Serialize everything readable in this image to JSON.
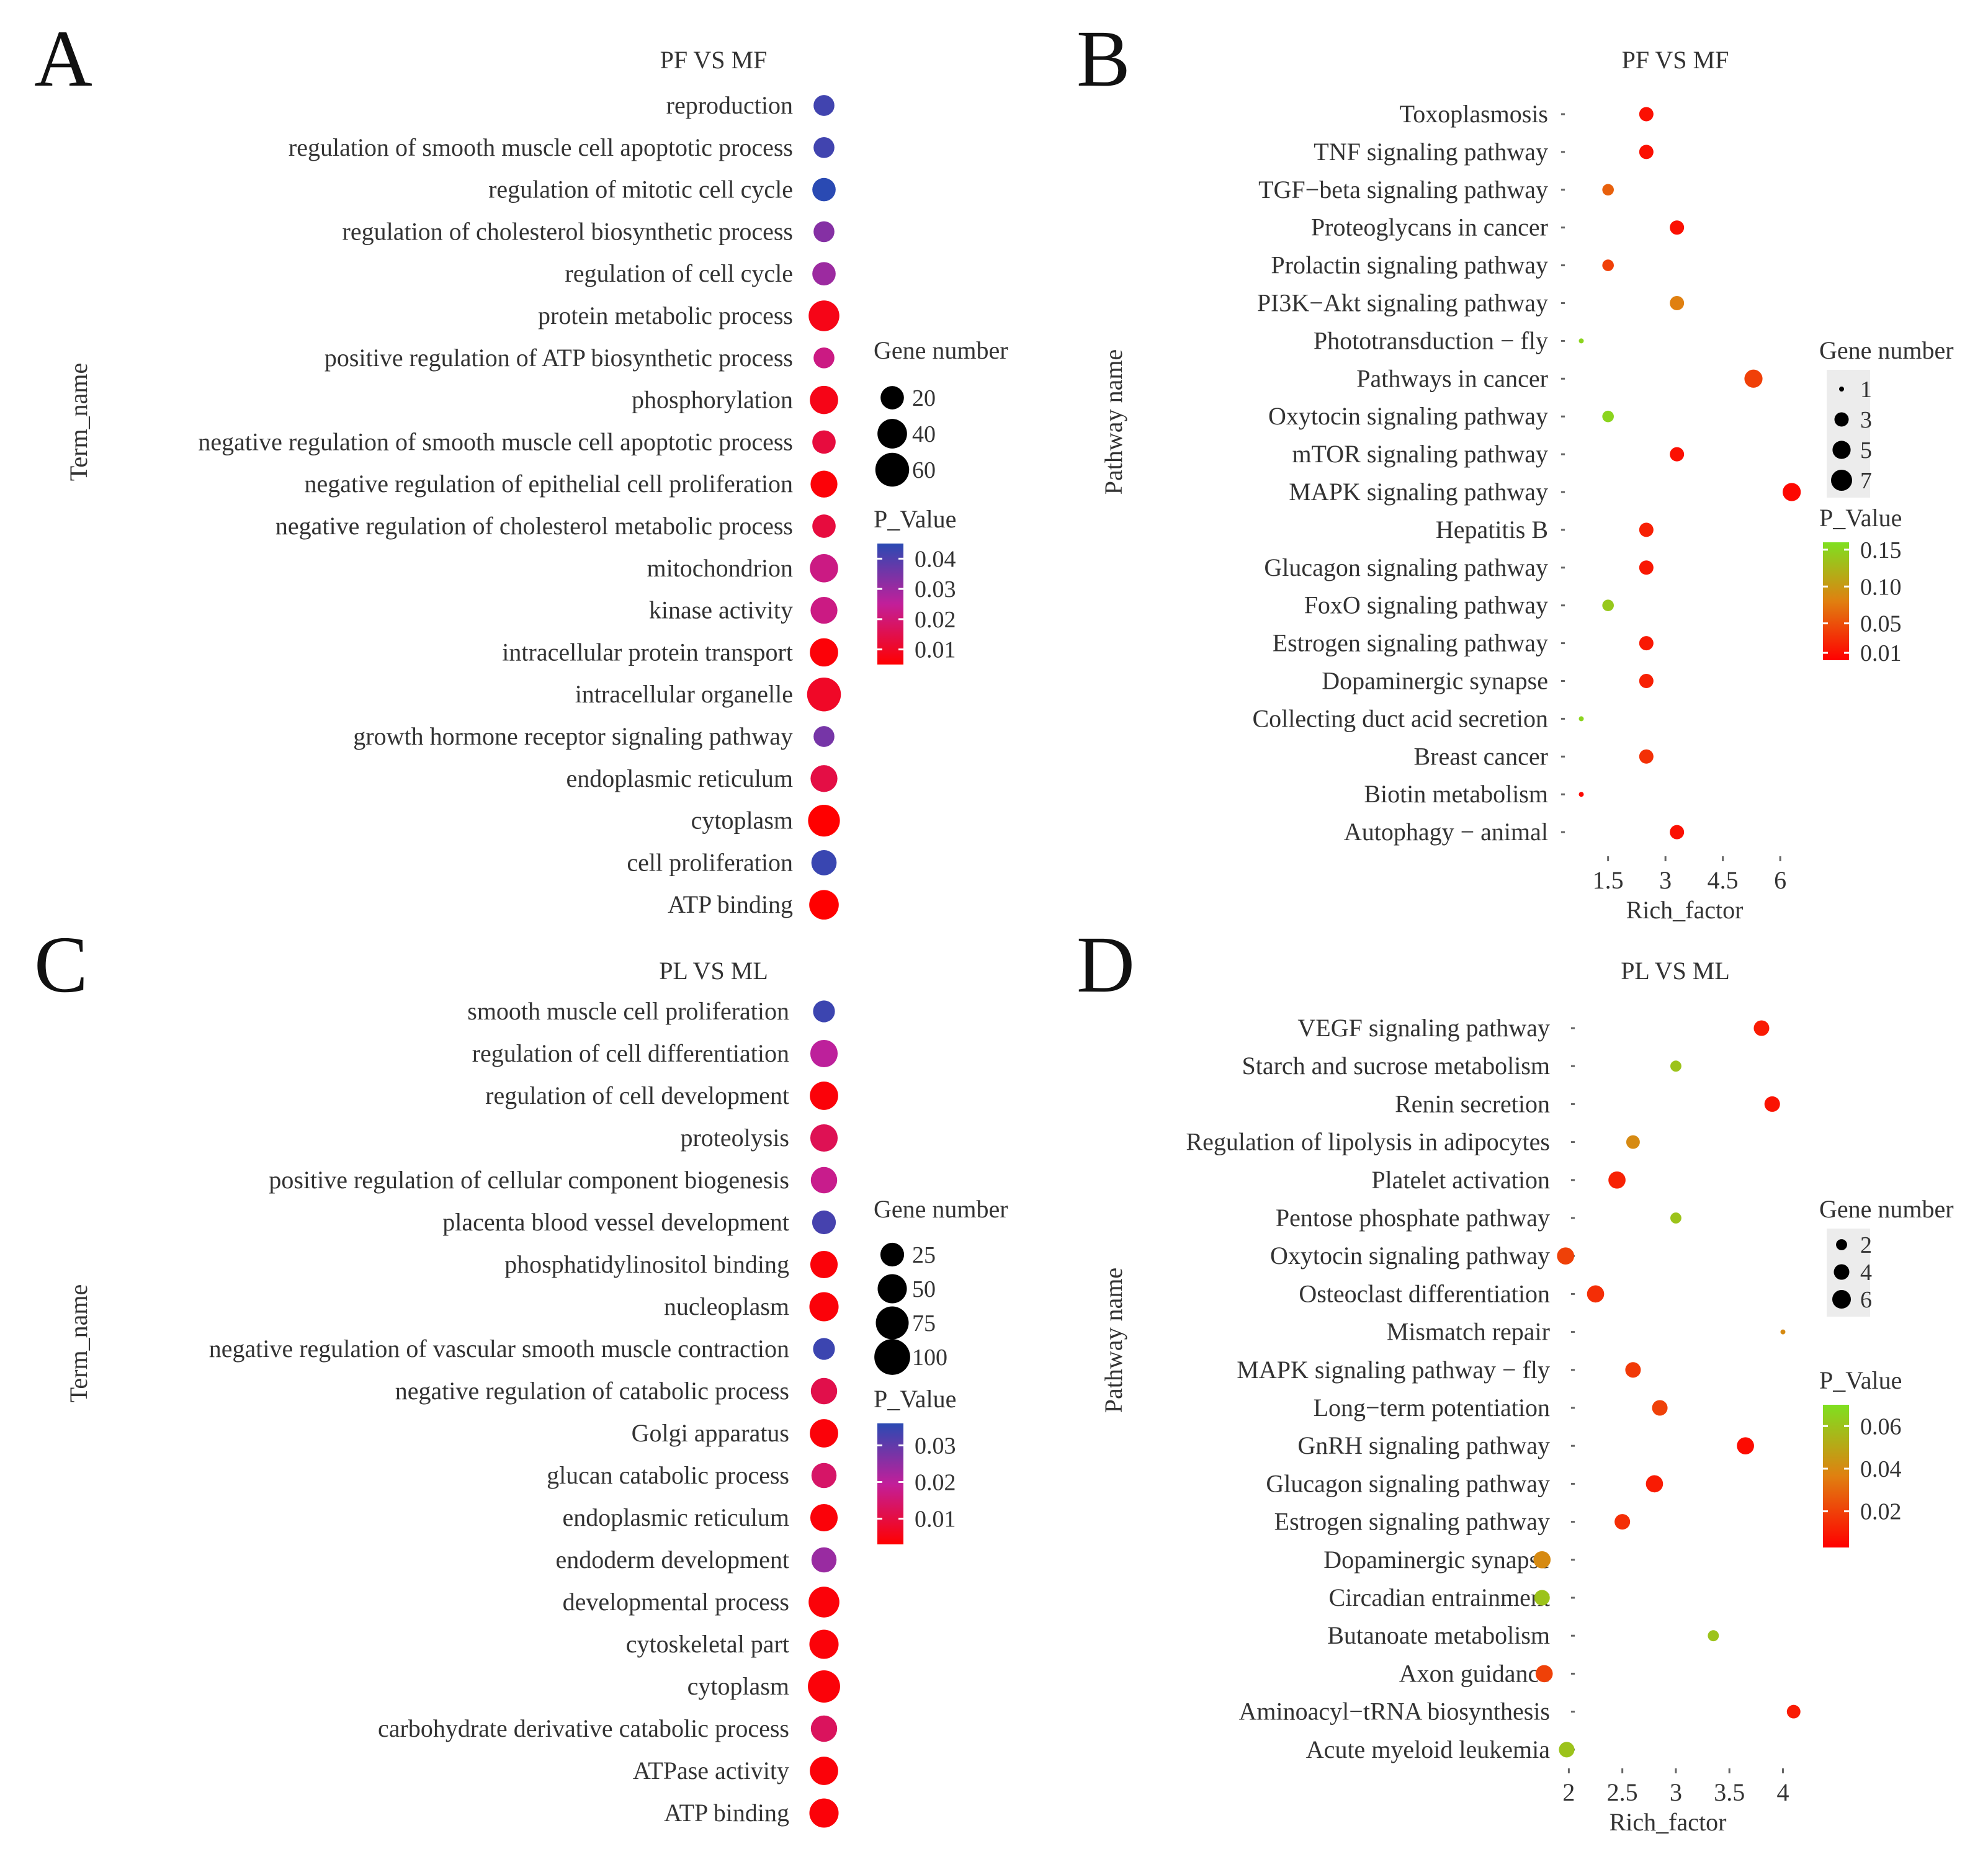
{
  "chart_data": [
    {
      "id": "A",
      "type": "scatter",
      "panel_label": "A",
      "title": "PF  VS  MF",
      "ylabel": "Term_name",
      "xlabel": "",
      "terms": [
        "reproduction",
        "regulation of smooth muscle cell apoptotic process",
        "regulation of mitotic cell cycle",
        "regulation of cholesterol biosynthetic process",
        "regulation of cell cycle",
        "protein metabolic process",
        "positive regulation of ATP biosynthetic process",
        "phosphorylation",
        "negative regulation of smooth muscle cell apoptotic process",
        "negative regulation of epithelial cell proliferation",
        "negative regulation of cholesterol metabolic process",
        "mitochondrion",
        "kinase activity",
        "intracellular protein transport",
        "intracellular organelle",
        "growth hormone receptor signaling pathway",
        "endoplasmic reticulum",
        "cytoplasm",
        "cell proliferation",
        "ATP binding"
      ],
      "gene_number": [
        15,
        15,
        20,
        15,
        20,
        45,
        15,
        35,
        20,
        30,
        20,
        35,
        30,
        35,
        60,
        15,
        30,
        50,
        25,
        40
      ],
      "p_value": [
        0.042,
        0.042,
        0.045,
        0.033,
        0.03,
        0.008,
        0.022,
        0.008,
        0.013,
        0.006,
        0.013,
        0.022,
        0.022,
        0.006,
        0.01,
        0.035,
        0.014,
        0.005,
        0.043,
        0.005
      ],
      "size_legend": {
        "title": "Gene number",
        "labels": [
          "20",
          "40",
          "60"
        ],
        "values": [
          20,
          40,
          60
        ]
      },
      "color_legend": {
        "title": "P_Value",
        "labels": [
          "0.04",
          "0.03",
          "0.02",
          "0.01"
        ],
        "values": [
          0.04,
          0.03,
          0.02,
          0.01
        ],
        "range": [
          0.005,
          0.045
        ],
        "colors": [
          "#ff0000",
          "#c21f9a",
          "#2a4ab3"
        ]
      }
    },
    {
      "id": "B",
      "type": "scatter",
      "panel_label": "B",
      "title": "PF  VS  MF",
      "ylabel": "Pathway name",
      "xlabel": "Rich_factor",
      "x_ticks": [
        "1.5",
        "3",
        "4.5",
        "6"
      ],
      "x_tick_values": [
        1.5,
        3,
        4.5,
        6
      ],
      "xlim": [
        0.5,
        6.5
      ],
      "terms": [
        "Toxoplasmosis",
        "TNF signaling pathway",
        "TGF−beta signaling pathway",
        "Proteoglycans in cancer",
        "Prolactin signaling pathway",
        "PI3K−Akt signaling pathway",
        "Phototransduction − fly",
        "Pathways in cancer",
        "Oxytocin signaling pathway",
        "mTOR signaling pathway",
        "MAPK signaling pathway",
        "Hepatitis B",
        "Glucagon signaling pathway",
        "FoxO signaling pathway",
        "Estrogen signaling pathway",
        "Dopaminergic synapse",
        "Collecting duct acid secretion",
        "Breast cancer",
        "Biotin metabolism",
        "Autophagy − animal"
      ],
      "x": [
        2.5,
        2.5,
        1.5,
        3.3,
        1.5,
        3.3,
        0.8,
        5.3,
        1.5,
        3.3,
        6.3,
        2.5,
        2.5,
        1.5,
        2.5,
        2.5,
        0.8,
        2.5,
        0.8,
        3.3
      ],
      "gene_number": [
        3,
        3,
        2,
        3,
        2,
        3,
        1,
        5,
        2,
        3,
        5,
        3,
        3,
        2,
        3,
        3,
        1,
        3,
        1,
        3
      ],
      "p_value": [
        0.01,
        0.01,
        0.06,
        0.01,
        0.04,
        0.08,
        0.15,
        0.04,
        0.15,
        0.01,
        0.005,
        0.02,
        0.015,
        0.14,
        0.015,
        0.02,
        0.15,
        0.03,
        0.005,
        0.01
      ],
      "size_legend": {
        "title": "Gene number",
        "labels": [
          "1",
          "3",
          "5",
          "7"
        ],
        "values": [
          1,
          3,
          5,
          7
        ]
      },
      "color_legend": {
        "title": "P_Value",
        "labels": [
          "0.15",
          "0.10",
          "0.05",
          "0.01"
        ],
        "values": [
          0.15,
          0.1,
          0.05,
          0.01
        ],
        "range": [
          0.0,
          0.16
        ],
        "colors": [
          "#ff0000",
          "#e08010",
          "#7fe020"
        ]
      }
    },
    {
      "id": "C",
      "type": "scatter",
      "panel_label": "C",
      "title": "PL  VS  ML",
      "ylabel": "Term_name",
      "xlabel": "",
      "terms": [
        "smooth muscle cell proliferation",
        "regulation of cell differentiation",
        "regulation of cell development",
        "proteolysis",
        "positive regulation of cellular component biogenesis",
        "placenta blood vessel development",
        "phosphatidylinositol binding",
        "nucleoplasm",
        "negative regulation of vascular smooth muscle contraction",
        "negative regulation of catabolic process",
        "Golgi apparatus",
        "glucan catabolic process",
        "endoplasmic reticulum",
        "endoderm development",
        "developmental process",
        "cytoskeletal part",
        "cytoplasm",
        "carbohydrate derivative catabolic process",
        "ATPase activity",
        "ATP binding"
      ],
      "gene_number": [
        20,
        40,
        45,
        40,
        35,
        25,
        40,
        50,
        20,
        35,
        45,
        30,
        40,
        30,
        60,
        50,
        70,
        35,
        45,
        50
      ],
      "p_value": [
        0.034,
        0.02,
        0.004,
        0.012,
        0.018,
        0.033,
        0.004,
        0.004,
        0.034,
        0.011,
        0.004,
        0.014,
        0.004,
        0.024,
        0.004,
        0.004,
        0.004,
        0.013,
        0.004,
        0.004
      ],
      "size_legend": {
        "title": "Gene number",
        "labels": [
          "25",
          "50",
          "75",
          "100"
        ],
        "values": [
          25,
          50,
          75,
          100
        ]
      },
      "color_legend": {
        "title": "P_Value",
        "labels": [
          "0.03",
          "0.02",
          "0.01"
        ],
        "values": [
          0.03,
          0.02,
          0.01
        ],
        "range": [
          0.003,
          0.036
        ],
        "colors": [
          "#ff0000",
          "#c21f9a",
          "#2a4ab3"
        ]
      }
    },
    {
      "id": "D",
      "type": "scatter",
      "panel_label": "D",
      "title": "PL  VS  ML",
      "ylabel": "Pathway name",
      "xlabel": "Rich_factor",
      "x_ticks": [
        "2",
        "2.5",
        "3",
        "3.5",
        "4"
      ],
      "x_tick_values": [
        2,
        2.5,
        3,
        3.5,
        4
      ],
      "xlim": [
        1.65,
        4.2
      ],
      "terms": [
        "VEGF signaling pathway",
        "Starch and sucrose metabolism",
        "Renin secretion",
        "Regulation of lipolysis in adipocytes",
        "Platelet activation",
        "Pentose phosphate pathway",
        "Oxytocin signaling pathway",
        "Osteoclast differentiation",
        "Mismatch repair",
        "MAPK signaling pathway − fly",
        "Long−term potentiation",
        "GnRH signaling pathway",
        "Glucagon signaling pathway",
        "Estrogen signaling pathway",
        "Dopaminergic synapse",
        "Circadian entrainment",
        "Butanoate metabolism",
        "Axon guidance",
        "Aminoacyl−tRNA biosynthesis",
        "Acute myeloid leukemia"
      ],
      "x": [
        3.8,
        3.0,
        3.9,
        2.6,
        2.45,
        3.0,
        1.97,
        2.25,
        4.0,
        2.6,
        2.85,
        3.65,
        2.8,
        2.5,
        1.75,
        1.75,
        3.35,
        1.77,
        4.1,
        1.98
      ],
      "gene_number": [
        4,
        2,
        4,
        3,
        5,
        2,
        5,
        5,
        1,
        4,
        4,
        5,
        5,
        4,
        5,
        4,
        2,
        5,
        3,
        4
      ],
      "p_value": [
        0.01,
        0.06,
        0.008,
        0.04,
        0.012,
        0.06,
        0.02,
        0.015,
        0.04,
        0.018,
        0.02,
        0.006,
        0.01,
        0.015,
        0.04,
        0.06,
        0.06,
        0.02,
        0.01,
        0.06
      ],
      "size_legend": {
        "title": "Gene number",
        "labels": [
          "2",
          "4",
          "6"
        ],
        "values": [
          2,
          4,
          6
        ]
      },
      "color_legend": {
        "title": "P_Value",
        "labels": [
          "0.06",
          "0.04",
          "0.02"
        ],
        "values": [
          0.06,
          0.04,
          0.02
        ],
        "range": [
          0.003,
          0.07
        ],
        "colors": [
          "#ff0000",
          "#e08010",
          "#7fe020"
        ]
      }
    }
  ]
}
